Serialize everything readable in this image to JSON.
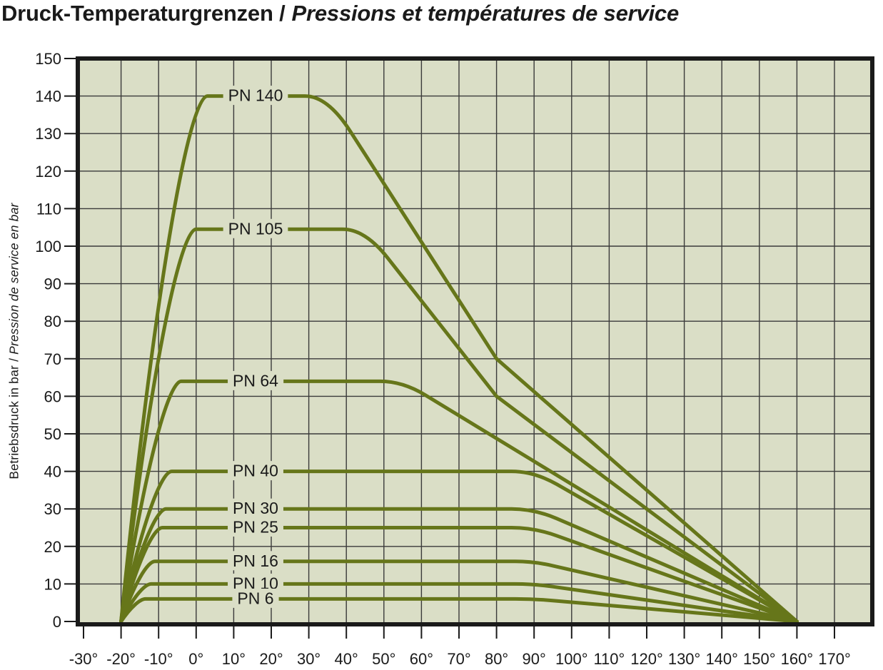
{
  "title": {
    "part1": "Druck-Temperaturgrenzen /",
    "part2": "Pressions et températures de service"
  },
  "y_axis": {
    "title_part1": "Betriebsdruck in bar /",
    "title_part2": "Pression de service en bar",
    "tick_labels": [
      "150",
      "140",
      "130",
      "120",
      "110",
      "100",
      "90",
      "80",
      "70",
      "60",
      "50",
      "40",
      "30",
      "20",
      "10",
      "0"
    ]
  },
  "x_axis": {
    "tick_labels": [
      "-30°",
      "-20°",
      "-10°",
      "0°",
      "10°",
      "20°",
      "30°",
      "40°",
      "50°",
      "60°",
      "70°",
      "80°",
      "90°",
      "100°",
      "110°",
      "120°",
      "130°",
      "140°",
      "150°",
      "160°",
      "170°"
    ]
  },
  "chart_data": {
    "type": "line",
    "title": "Druck-Temperaturgrenzen / Pressions et températures de service",
    "ylabel": "Betriebsdruck in bar / Pression de service en bar",
    "xlim": [
      -30,
      170
    ],
    "ylim": [
      0,
      150
    ],
    "x_tick_step": 10,
    "y_tick_step": 10,
    "x_unit": "°C",
    "y_unit": "bar",
    "grid": true,
    "legend_position": "on-curve-labels",
    "series": [
      {
        "name": "PN 140",
        "plateau_bar": 140,
        "rise_start": [
          -20,
          0
        ],
        "plateau_start_temp": 3,
        "plateau_end_temp": 29,
        "derate_knee_temp": 35,
        "derate_points": [
          [
            80,
            70
          ],
          [
            160,
            0
          ]
        ]
      },
      {
        "name": "PN 105",
        "plateau_bar": 104.5,
        "rise_start": [
          -20,
          0
        ],
        "plateau_start_temp": 0,
        "plateau_end_temp": 39,
        "derate_knee_temp": 45,
        "derate_points": [
          [
            80,
            60
          ],
          [
            160,
            0
          ]
        ]
      },
      {
        "name": "PN 64",
        "plateau_bar": 64,
        "rise_start": [
          -20,
          0
        ],
        "plateau_start_temp": -4,
        "plateau_end_temp": 49,
        "derate_knee_temp": 55,
        "derate_points": [
          [
            160,
            0
          ]
        ]
      },
      {
        "name": "PN 40",
        "plateau_bar": 40,
        "rise_start": [
          -20,
          0
        ],
        "plateau_start_temp": -6.5,
        "plateau_end_temp": 84,
        "derate_knee_temp": 90,
        "derate_points": [
          [
            160,
            0
          ]
        ]
      },
      {
        "name": "PN 30",
        "plateau_bar": 30,
        "rise_start": [
          -20,
          0
        ],
        "plateau_start_temp": -8,
        "plateau_end_temp": 84,
        "derate_knee_temp": 90,
        "derate_points": [
          [
            160,
            0
          ]
        ]
      },
      {
        "name": "PN 25",
        "plateau_bar": 25,
        "rise_start": [
          -20,
          0
        ],
        "plateau_start_temp": -9,
        "plateau_end_temp": 84,
        "derate_knee_temp": 90,
        "derate_points": [
          [
            160,
            0
          ]
        ]
      },
      {
        "name": "PN 16",
        "plateau_bar": 16,
        "rise_start": [
          -20,
          0
        ],
        "plateau_start_temp": -11,
        "plateau_end_temp": 85,
        "derate_knee_temp": 90,
        "derate_points": [
          [
            160,
            0
          ]
        ]
      },
      {
        "name": "PN 10",
        "plateau_bar": 10,
        "rise_start": [
          -20,
          0
        ],
        "plateau_start_temp": -12,
        "plateau_end_temp": 85,
        "derate_knee_temp": 90,
        "derate_points": [
          [
            160,
            0
          ]
        ]
      },
      {
        "name": "PN 6",
        "plateau_bar": 6,
        "rise_start": [
          -20,
          0
        ],
        "plateau_start_temp": -13.5,
        "plateau_end_temp": 85,
        "derate_knee_temp": 90,
        "derate_points": [
          [
            160,
            0
          ]
        ]
      }
    ],
    "colors": {
      "curve": "#66761a",
      "plot_bg": "#dadec6",
      "grid": "#3a3a3a",
      "frame": "#1a1a1a",
      "text": "#1a1a1a",
      "page_bg": "#ffffff"
    }
  }
}
